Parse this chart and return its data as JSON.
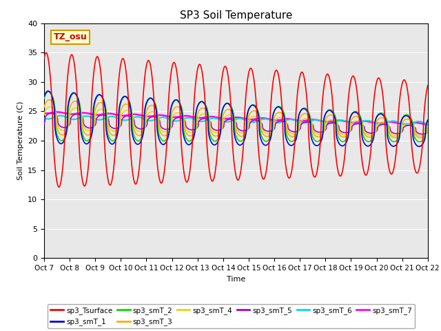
{
  "title": "SP3 Soil Temperature",
  "ylabel": "Soil Temperature (C)",
  "xlabel": "Time",
  "annotation": "TZ_osu",
  "ylim": [
    0,
    40
  ],
  "n_days": 15,
  "x_tick_labels": [
    "Oct 7",
    "Oct 8",
    "Oct 9",
    "Oct 10",
    "Oct 11",
    "Oct 12",
    "Oct 13",
    "Oct 14",
    "Oct 15",
    "Oct 16",
    "Oct 17",
    "Oct 18",
    "Oct 19",
    "Oct 20",
    "Oct 21",
    "Oct 22"
  ],
  "series_colors": {
    "sp3_Tsurface": "#ff0000",
    "sp3_smT_1": "#0000dd",
    "sp3_smT_2": "#00dd00",
    "sp3_smT_3": "#ffaa00",
    "sp3_smT_4": "#dddd00",
    "sp3_smT_5": "#aa00dd",
    "sp3_smT_6": "#00dddd",
    "sp3_smT_7": "#ff00ff"
  },
  "background_color": "#e8e8e8",
  "grid_color": "#ffffff"
}
